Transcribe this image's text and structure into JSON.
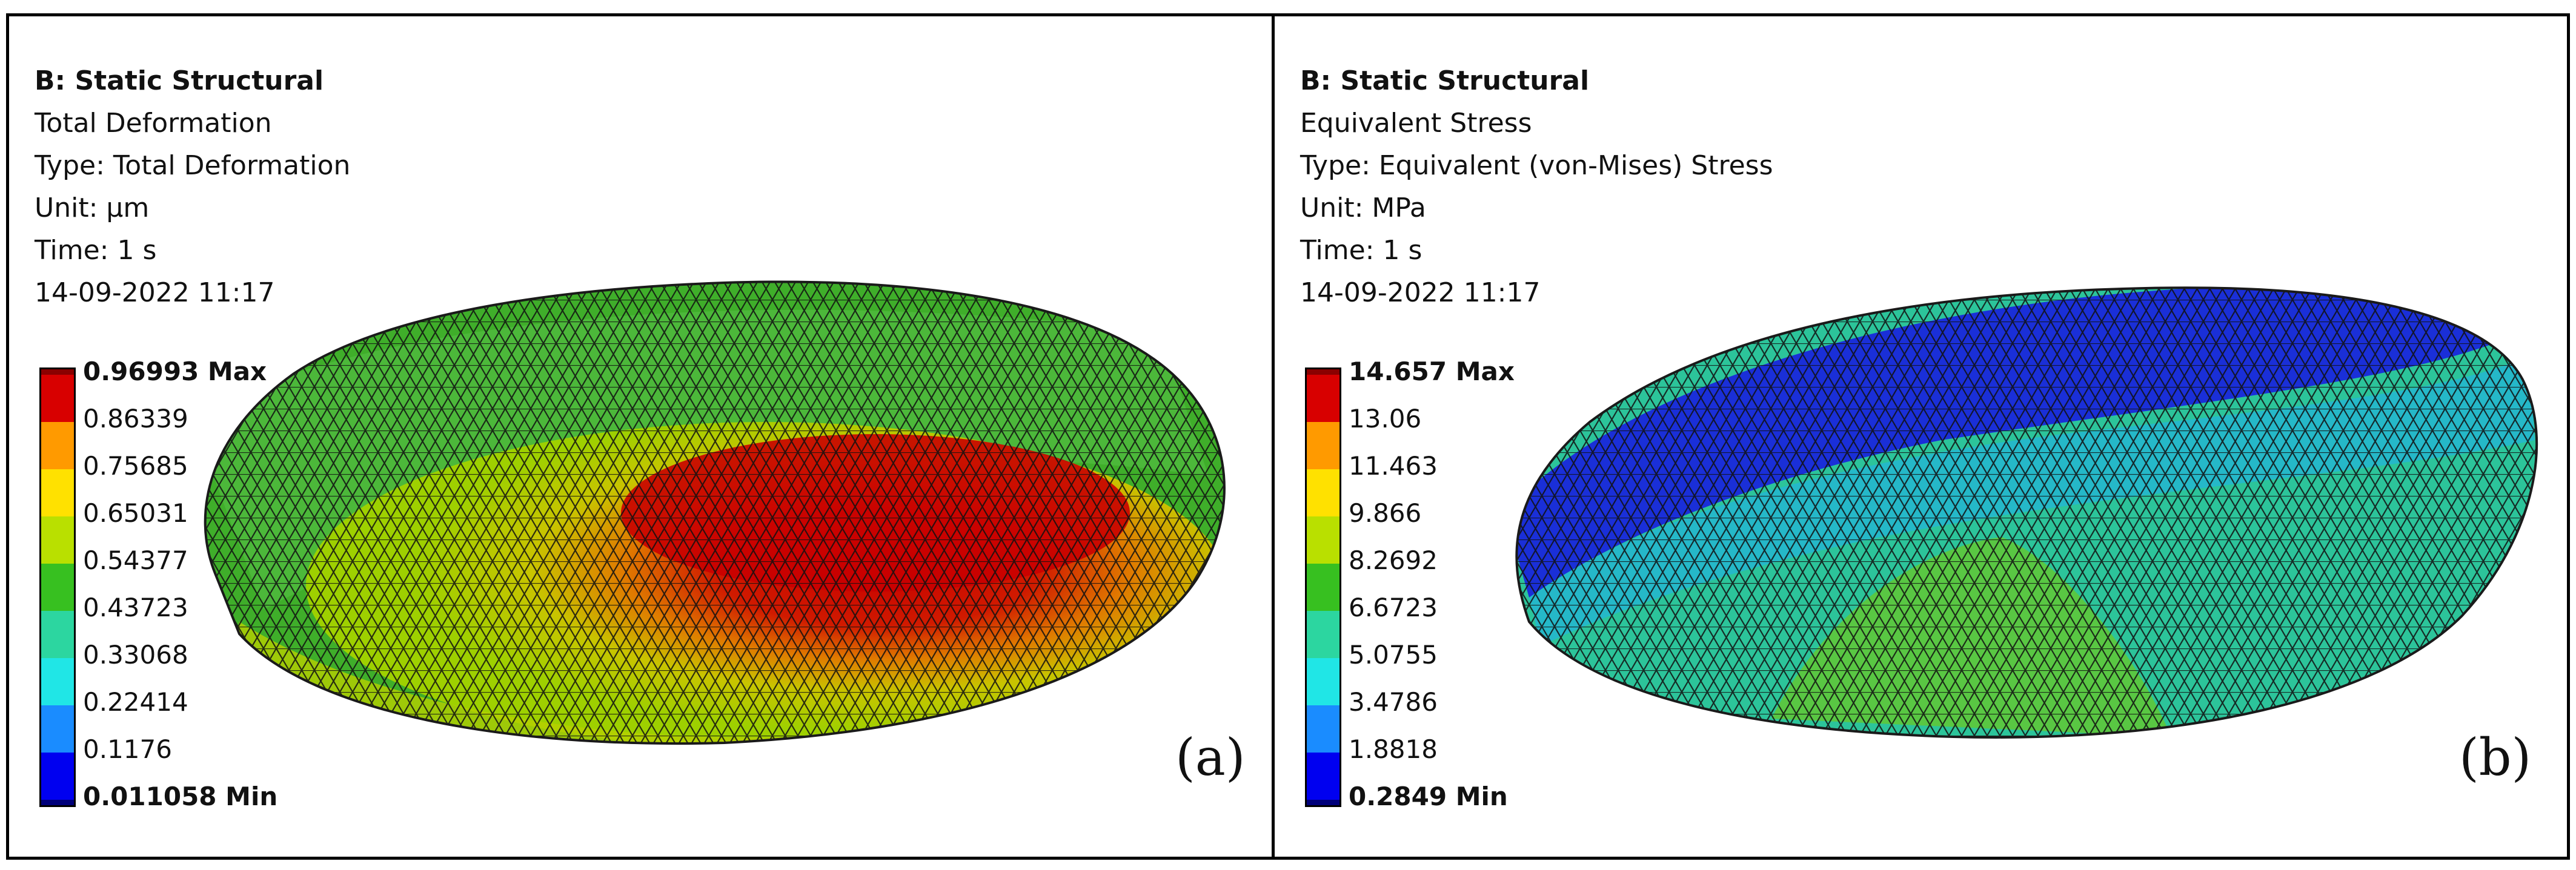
{
  "panels": [
    {
      "id": "a",
      "system": "B: Static Structural",
      "result": "Total Deformation",
      "type": "Type: Total Deformation",
      "unit": "Unit: µm",
      "time": "Time: 1 s",
      "timestamp": "14-09-2022 11:17",
      "legend": [
        "0.96993 Max",
        "0.86339",
        "0.75685",
        "0.65031",
        "0.54377",
        "0.43723",
        "0.33068",
        "0.22414",
        "0.1176",
        "0.011058 Min"
      ],
      "panel_label": "(a)"
    },
    {
      "id": "b",
      "system": "B: Static Structural",
      "result": "Equivalent Stress",
      "type": "Type: Equivalent (von-Mises) Stress",
      "unit": "Unit: MPa",
      "time": "Time: 1 s",
      "timestamp": "14-09-2022 11:17",
      "legend": [
        "14.657 Max",
        "13.06",
        "11.463",
        "9.866",
        "8.2692",
        "6.6723",
        "5.0755",
        "3.4786",
        "1.8818",
        "0.2849 Min"
      ],
      "panel_label": "(b)"
    }
  ],
  "legend_colors": [
    "#d80000",
    "#ff9a00",
    "#ffe100",
    "#b9e000",
    "#37c020",
    "#2cd6a0",
    "#20e6e6",
    "#1a8cff",
    "#0000f0"
  ],
  "legend_max_cap": "#8b0000",
  "legend_min_cap": "#00007a"
}
